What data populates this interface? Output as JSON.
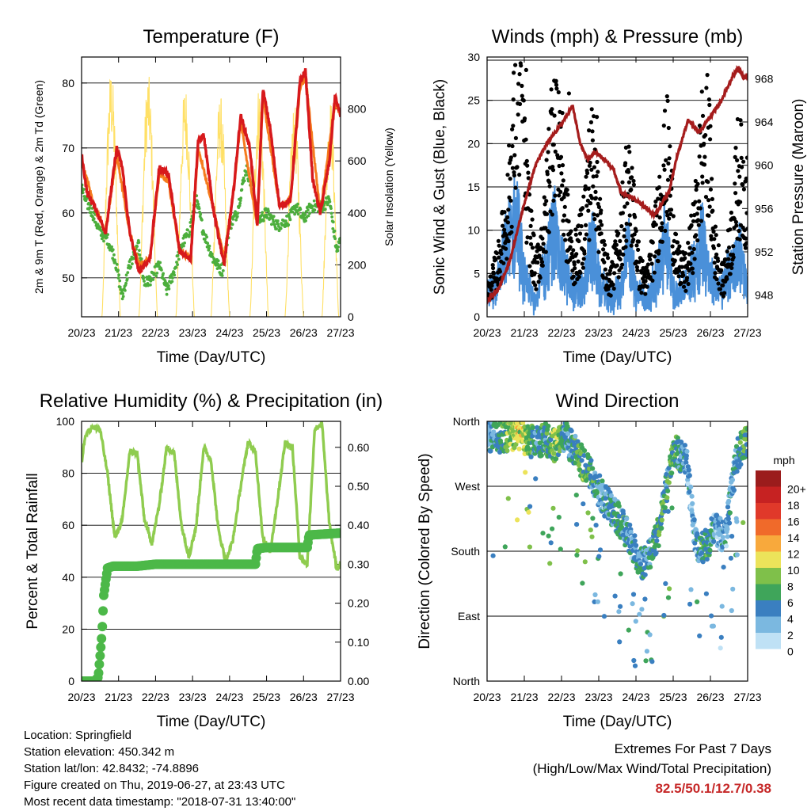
{
  "colors": {
    "temp": "#d7191c",
    "temp9": "#f57c1e",
    "dewpoint": "#4cae3c",
    "solar": "#ffe066",
    "wind": "#4a90d9",
    "gust": "#000000",
    "pressure": "#a51c1c",
    "rh": "#8fcc4f",
    "precip": "#4cb848",
    "accent_text": "#c62828"
  },
  "chart_data": [
    {
      "type": "line",
      "title": "Temperature (F)",
      "xlabel": "Time (Day/UTC)",
      "ylabel_left": "2m & 9m T (Red, Orange) & 2m Td (Green)",
      "ylabel_right": "Solar Insolation (Yellow)",
      "x_ticks": [
        "20/23",
        "21/23",
        "22/23",
        "23/23",
        "24/23",
        "25/23",
        "26/23",
        "27/23"
      ],
      "ylim_left": [
        44,
        84
      ],
      "yticks_left": [
        50,
        60,
        70,
        80
      ],
      "ylim_right": [
        0,
        1000
      ],
      "yticks_right": [
        0,
        200,
        400,
        600,
        800
      ],
      "grid_y": true,
      "series": [
        {
          "name": "2m T",
          "axis": "left",
          "x": [
            0,
            0.15,
            0.35,
            0.65,
            0.95,
            1.1,
            1.3,
            1.55,
            1.85,
            2.1,
            2.35,
            2.65,
            2.95,
            3.15,
            3.3,
            3.55,
            3.85,
            4.1,
            4.3,
            4.55,
            4.75,
            4.9,
            5.1,
            5.35,
            5.65,
            5.9,
            6.05,
            6.25,
            6.45,
            6.7,
            6.85,
            7.0
          ],
          "y": [
            69,
            63,
            61,
            57,
            70,
            67,
            57,
            51,
            53,
            67,
            66,
            54,
            53,
            71,
            72,
            61,
            52,
            63,
            75,
            70,
            58,
            79,
            73,
            61,
            62,
            80,
            82,
            65,
            60,
            68,
            78,
            75
          ]
        },
        {
          "name": "9m T",
          "axis": "left",
          "x": [
            0,
            0.35,
            0.65,
            0.95,
            1.3,
            1.55,
            1.85,
            2.1,
            2.35,
            2.65,
            2.95,
            3.15,
            3.55,
            3.85,
            4.1,
            4.3,
            4.75,
            4.9,
            5.35,
            5.65,
            5.9,
            6.05,
            6.45,
            6.85,
            7.0
          ],
          "y": [
            68,
            61,
            57,
            69,
            57,
            52,
            53,
            66,
            65,
            54,
            53,
            70,
            61,
            53,
            63,
            74,
            58,
            78,
            61,
            62,
            79,
            81,
            60,
            77,
            75
          ]
        },
        {
          "name": "2m Td",
          "axis": "left",
          "x": [
            0,
            0.1,
            0.3,
            0.5,
            0.7,
            0.9,
            1.1,
            1.3,
            1.55,
            1.7,
            1.9,
            2.1,
            2.3,
            2.5,
            2.7,
            2.9,
            3.1,
            3.3,
            3.55,
            3.8,
            4.0,
            4.2,
            4.45,
            4.6,
            4.8,
            5.0,
            5.3,
            5.6,
            5.8,
            6.0,
            6.2,
            6.5,
            6.7,
            6.9,
            7.0
          ],
          "y": [
            64,
            62,
            60,
            57,
            56,
            53,
            47,
            52,
            55,
            49,
            50,
            52,
            48,
            51,
            55,
            57,
            62,
            57,
            53,
            51,
            58,
            60,
            67,
            64,
            59,
            60,
            58,
            59,
            61,
            59,
            61,
            61,
            62,
            54,
            56
          ]
        },
        {
          "name": "Solar Insolation",
          "axis": "right",
          "peaks": [
            {
              "start": 0.55,
              "end": 1.05,
              "peak": 960
            },
            {
              "start": 1.55,
              "end": 2.05,
              "peak": 940
            },
            {
              "start": 2.55,
              "end": 3.05,
              "peak": 900
            },
            {
              "start": 3.5,
              "end": 4.0,
              "peak": 860
            },
            {
              "start": 4.55,
              "end": 5.05,
              "peak": 900
            },
            {
              "start": 5.5,
              "end": 6.0,
              "peak": 820
            },
            {
              "start": 6.5,
              "end": 6.95,
              "peak": 840
            }
          ]
        }
      ]
    },
    {
      "type": "scatter",
      "title": "Winds (mph) & Pressure (mb)",
      "xlabel": "Time (Day/UTC)",
      "ylabel_left": "Sonic Wind & Gust (Blue, Black)",
      "ylabel_right": "Station Pressure (Maroon)",
      "x_ticks": [
        "20/23",
        "21/23",
        "22/23",
        "23/23",
        "24/23",
        "25/23",
        "26/23",
        "27/23"
      ],
      "ylim_left": [
        0,
        30
      ],
      "yticks_left": [
        0,
        5,
        10,
        15,
        20,
        25,
        30
      ],
      "ylim_right": [
        946.0,
        970.0
      ],
      "yticks_right": [
        948,
        952,
        956,
        960,
        964,
        968
      ],
      "grid_y": true,
      "series": [
        {
          "name": "Sonic Wind",
          "axis": "left",
          "x": [
            0.0,
            0.3,
            0.6,
            0.8,
            1.0,
            1.3,
            1.6,
            1.8,
            2.0,
            2.3,
            2.6,
            2.8,
            3.0,
            3.3,
            3.6,
            3.8,
            4.0,
            4.3,
            4.6,
            4.8,
            5.0,
            5.3,
            5.6,
            5.8,
            6.0,
            6.3,
            6.6,
            6.8,
            7.0
          ],
          "y": [
            2,
            4,
            9,
            11,
            4,
            2,
            6,
            10,
            6,
            3,
            3,
            9,
            4,
            2,
            3,
            8,
            3,
            2,
            5,
            9,
            3,
            3,
            6,
            9,
            4,
            3,
            6,
            7,
            3
          ]
        },
        {
          "name": "Gust",
          "axis": "left",
          "x": [
            0.05,
            0.3,
            0.55,
            0.75,
            0.9,
            1.05,
            1.3,
            1.55,
            1.7,
            1.85,
            2.1,
            2.3,
            2.55,
            2.75,
            2.9,
            3.1,
            3.3,
            3.55,
            3.75,
            3.9,
            4.1,
            4.3,
            4.55,
            4.7,
            4.85,
            5.1,
            5.35,
            5.6,
            5.75,
            5.9,
            6.1,
            6.35,
            6.6,
            6.75,
            6.9
          ],
          "y": [
            3,
            6,
            12,
            22,
            28.5,
            14,
            5,
            10,
            19,
            25.8,
            12,
            6,
            9,
            16,
            19,
            7,
            4,
            8,
            15,
            13,
            5,
            4,
            10,
            15,
            18,
            6,
            5,
            11,
            18,
            23,
            8,
            4,
            10,
            17,
            14
          ]
        },
        {
          "name": "Station Pressure",
          "axis": "right",
          "x": [
            0,
            0.3,
            0.6,
            1.0,
            1.3,
            1.6,
            2.0,
            2.3,
            2.5,
            2.7,
            2.9,
            3.1,
            3.4,
            3.6,
            4.0,
            4.3,
            4.5,
            4.7,
            4.9,
            5.1,
            5.4,
            5.7,
            6.0,
            6.3,
            6.6,
            6.75,
            6.9,
            7.0
          ],
          "y": [
            947.5,
            948.5,
            951,
            956.5,
            960,
            962,
            963.8,
            965.5,
            962,
            960.5,
            961.2,
            960.7,
            959.6,
            957.5,
            956.8,
            956.0,
            955.3,
            956.5,
            957.7,
            960.8,
            964.2,
            963.0,
            964.5,
            966,
            968.2,
            969.0,
            968.0,
            968.3
          ]
        }
      ]
    },
    {
      "type": "line",
      "title": "Relative Humidity (%) & Precipitation (in)",
      "xlabel": "Time (Day/UTC)",
      "ylabel_left": "Percent & Total Rainfall",
      "x_ticks": [
        "20/23",
        "21/23",
        "22/23",
        "23/23",
        "24/23",
        "25/23",
        "26/23",
        "27/23"
      ],
      "ylim_left": [
        0,
        100
      ],
      "yticks_left": [
        0,
        20,
        40,
        60,
        80,
        100
      ],
      "ylim_right": [
        0.0,
        0.6667
      ],
      "yticks_right": [
        "0.00",
        "0.10",
        "0.20",
        "0.30",
        "0.40",
        "0.50",
        "0.60"
      ],
      "grid_y": true,
      "series": [
        {
          "name": "Relative Humidity",
          "axis": "left",
          "x": [
            0,
            0.1,
            0.3,
            0.5,
            0.7,
            0.9,
            1.1,
            1.3,
            1.5,
            1.7,
            1.9,
            2.1,
            2.3,
            2.5,
            2.7,
            2.9,
            3.1,
            3.3,
            3.5,
            3.7,
            3.9,
            4.1,
            4.3,
            4.5,
            4.7,
            4.9,
            5.1,
            5.3,
            5.5,
            5.7,
            5.9,
            6.1,
            6.3,
            6.5,
            6.7,
            6.9,
            7.0
          ],
          "y": [
            84,
            95,
            98,
            97,
            80,
            55,
            62,
            88,
            88,
            62,
            53,
            68,
            90,
            88,
            60,
            48,
            60,
            90,
            85,
            58,
            46,
            55,
            75,
            92,
            88,
            55,
            50,
            70,
            92,
            90,
            48,
            45,
            97,
            99,
            60,
            43,
            45
          ]
        },
        {
          "name": "Total Precipitation",
          "axis": "right",
          "x": [
            0,
            0.35,
            0.45,
            0.55,
            0.6,
            0.7,
            0.85,
            1.0,
            1.5,
            2.0,
            2.5,
            3.0,
            3.5,
            4.0,
            4.5,
            4.7,
            4.75,
            5.0,
            5.5,
            5.8,
            6.0,
            6.1,
            6.15,
            6.5,
            7.0
          ],
          "y": [
            0,
            0,
            0.01,
            0.12,
            0.22,
            0.29,
            0.295,
            0.295,
            0.295,
            0.3,
            0.3,
            0.3,
            0.3,
            0.3,
            0.3,
            0.3,
            0.34,
            0.343,
            0.343,
            0.343,
            0.343,
            0.343,
            0.375,
            0.377,
            0.38
          ]
        }
      ]
    },
    {
      "type": "scatter",
      "title": "Wind Direction",
      "xlabel": "Time (Day/UTC)",
      "ylabel_left": "Direction (Colored By Speed)",
      "x_ticks": [
        "20/23",
        "21/23",
        "22/23",
        "23/23",
        "24/23",
        "25/23",
        "26/23",
        "27/23"
      ],
      "y_ticks": [
        "North",
        "East",
        "South",
        "West",
        "North"
      ],
      "ylim_deg": [
        0,
        360
      ],
      "grid_y": true,
      "legend": {
        "title": "mph",
        "placement": "right",
        "labels": [
          "20+",
          "18",
          "16",
          "14",
          "12",
          "10",
          "8",
          "6",
          "4",
          "2",
          "0"
        ],
        "colors": [
          "#9b1c1c",
          "#c62222",
          "#e0392a",
          "#f06a2a",
          "#f8a93c",
          "#ece35a",
          "#7fc04a",
          "#3fa55a",
          "#3a7fc0",
          "#7bb8e0",
          "#bfe1f5"
        ]
      },
      "clusters": [
        {
          "x": 0.2,
          "deg": 340,
          "speed": 4
        },
        {
          "x": 0.5,
          "deg": 338,
          "speed": 6
        },
        {
          "x": 0.8,
          "deg": 345,
          "speed": 10
        },
        {
          "x": 1.05,
          "deg": 335,
          "speed": 8
        },
        {
          "x": 1.3,
          "deg": 330,
          "speed": 4
        },
        {
          "x": 1.6,
          "deg": 335,
          "speed": 5
        },
        {
          "x": 1.85,
          "deg": 325,
          "speed": 8
        },
        {
          "x": 2.1,
          "deg": 338,
          "speed": 4
        },
        {
          "x": 2.4,
          "deg": 315,
          "speed": 5
        },
        {
          "x": 2.6,
          "deg": 300,
          "speed": 7
        },
        {
          "x": 2.85,
          "deg": 280,
          "speed": 5
        },
        {
          "x": 3.1,
          "deg": 255,
          "speed": 3
        },
        {
          "x": 3.4,
          "deg": 235,
          "speed": 4
        },
        {
          "x": 3.65,
          "deg": 215,
          "speed": 5
        },
        {
          "x": 3.9,
          "deg": 190,
          "speed": 3
        },
        {
          "x": 4.1,
          "deg": 160,
          "speed": 4
        },
        {
          "x": 4.35,
          "deg": 175,
          "speed": 4
        },
        {
          "x": 4.6,
          "deg": 205,
          "speed": 6
        },
        {
          "x": 4.8,
          "deg": 265,
          "speed": 5
        },
        {
          "x": 5.05,
          "deg": 320,
          "speed": 6
        },
        {
          "x": 5.35,
          "deg": 305,
          "speed": 3
        },
        {
          "x": 5.6,
          "deg": 190,
          "speed": 3
        },
        {
          "x": 5.85,
          "deg": 185,
          "speed": 6
        },
        {
          "x": 6.1,
          "deg": 210,
          "speed": 3
        },
        {
          "x": 6.4,
          "deg": 200,
          "speed": 3
        },
        {
          "x": 6.7,
          "deg": 310,
          "speed": 4
        },
        {
          "x": 6.9,
          "deg": 330,
          "speed": 6
        }
      ]
    }
  ],
  "station_info": {
    "location": "Location: Springfield",
    "elevation": "Station elevation: 450.342 m",
    "latlon": "Station lat/lon: 42.8432; -74.8896",
    "created": "Figure created on Thu, 2019-06-27, at 23:43 UTC",
    "recent": "Most recent data timestamp: \"2018-07-31 13:40:00\""
  },
  "extremes": {
    "title": "Extremes For Past 7 Days",
    "subtitle": "(High/Low/Max Wind/Total Precipitation)",
    "values": "82.5/50.1/12.7/0.38"
  }
}
